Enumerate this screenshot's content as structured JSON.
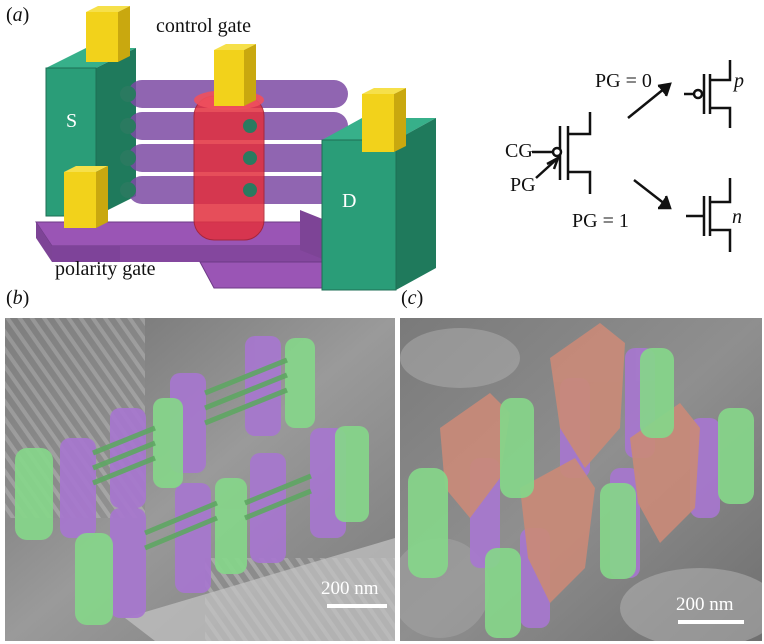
{
  "panels": {
    "a": {
      "label": "a"
    },
    "b": {
      "label": "b"
    },
    "c": {
      "label": "c"
    }
  },
  "device": {
    "source_label": "S",
    "drain_label": "D",
    "control_gate_label": "control gate",
    "polarity_gate_label": "polarity gate",
    "colors": {
      "contact": "#2a9d78",
      "contact_dark": "#1f7a5c",
      "pad": "#f2d21b",
      "pad_dark": "#c9a80f",
      "polarity_gate": "#9a55b5",
      "control_gate": "#e2303e",
      "nanowire": "#7c4aa3"
    }
  },
  "circuit": {
    "cg_label": "CG",
    "pg_label": "PG",
    "pg0_label": "PG = 0",
    "pg1_label": "PG = 1",
    "p_label": "p",
    "n_label": "n"
  },
  "sem_b": {
    "scalebar_label": "200 nm"
  },
  "sem_c": {
    "scalebar_label": "200 nm"
  },
  "sem_colors": {
    "green": "#86d68a",
    "purple": "#a777cf",
    "salmon": "#c98a78",
    "gray": "#8c8c8c"
  }
}
